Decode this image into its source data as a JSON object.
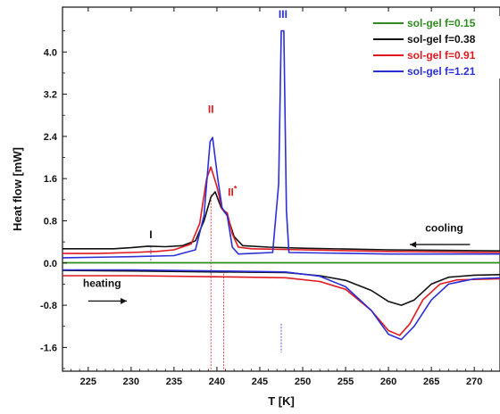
{
  "chart_data": {
    "type": "line",
    "title": "",
    "xlabel": "T [K]",
    "ylabel": "Heat flow [mW]",
    "xlim": [
      222,
      273
    ],
    "ylim": [
      -2.05,
      4.85
    ],
    "xticks": [
      225,
      230,
      235,
      240,
      245,
      250,
      255,
      260,
      265,
      270
    ],
    "yticks": [
      -1.6,
      -0.8,
      0.0,
      0.8,
      1.6,
      2.4,
      3.2,
      4.0
    ],
    "legend_position": "top-right",
    "series": [
      {
        "name": "sol-gel f=0.15",
        "color": "#2e8b1e",
        "cooling": [
          [
            222,
            0.005
          ],
          [
            273,
            0.005
          ]
        ],
        "heating": [
          [
            222,
            0.005
          ],
          [
            273,
            0.005
          ]
        ]
      },
      {
        "name": "sol-gel f=0.38",
        "color": "#111111",
        "cooling": [
          [
            222,
            0.27
          ],
          [
            228,
            0.27
          ],
          [
            230,
            0.29
          ],
          [
            232,
            0.32
          ],
          [
            234,
            0.31
          ],
          [
            236,
            0.33
          ],
          [
            237.5,
            0.42
          ],
          [
            238.5,
            0.8
          ],
          [
            239.3,
            1.25
          ],
          [
            239.8,
            1.35
          ],
          [
            240.5,
            1.05
          ],
          [
            241.2,
            0.9
          ],
          [
            242,
            0.5
          ],
          [
            243,
            0.33
          ],
          [
            246,
            0.3
          ],
          [
            250,
            0.28
          ],
          [
            260,
            0.25
          ],
          [
            273,
            0.23
          ]
        ],
        "heating": [
          [
            222,
            -0.14
          ],
          [
            230,
            -0.15
          ],
          [
            240,
            -0.17
          ],
          [
            248,
            -0.18
          ],
          [
            252,
            -0.24
          ],
          [
            255,
            -0.33
          ],
          [
            258,
            -0.52
          ],
          [
            260,
            -0.73
          ],
          [
            261.5,
            -0.8
          ],
          [
            263,
            -0.7
          ],
          [
            265,
            -0.4
          ],
          [
            267,
            -0.27
          ],
          [
            270,
            -0.23
          ],
          [
            273,
            -0.22
          ]
        ]
      },
      {
        "name": "sol-gel f=0.91",
        "color": "#e0191f",
        "cooling": [
          [
            222,
            0.18
          ],
          [
            226,
            0.18
          ],
          [
            230,
            0.2
          ],
          [
            233,
            0.22
          ],
          [
            235,
            0.25
          ],
          [
            237,
            0.36
          ],
          [
            238,
            0.75
          ],
          [
            238.8,
            1.6
          ],
          [
            239.3,
            1.82
          ],
          [
            240,
            1.45
          ],
          [
            240.6,
            1.02
          ],
          [
            241.2,
            0.95
          ],
          [
            241.8,
            0.55
          ],
          [
            242.5,
            0.3
          ],
          [
            244,
            0.27
          ],
          [
            250,
            0.25
          ],
          [
            260,
            0.22
          ],
          [
            273,
            0.2
          ]
        ],
        "heating": [
          [
            222,
            -0.24
          ],
          [
            230,
            -0.24
          ],
          [
            240,
            -0.26
          ],
          [
            248,
            -0.28
          ],
          [
            252,
            -0.35
          ],
          [
            255,
            -0.5
          ],
          [
            258,
            -0.9
          ],
          [
            260,
            -1.28
          ],
          [
            261.3,
            -1.37
          ],
          [
            262.5,
            -1.15
          ],
          [
            264,
            -0.7
          ],
          [
            266,
            -0.4
          ],
          [
            268,
            -0.32
          ],
          [
            273,
            -0.3
          ]
        ]
      },
      {
        "name": "sol-gel f=1.21",
        "color": "#2a2fd6",
        "cooling": [
          [
            222,
            0.1
          ],
          [
            230,
            0.12
          ],
          [
            235,
            0.14
          ],
          [
            237.5,
            0.25
          ],
          [
            238.5,
            0.9
          ],
          [
            239.2,
            2.3
          ],
          [
            239.5,
            2.38
          ],
          [
            240.1,
            1.6
          ],
          [
            240.6,
            1.05
          ],
          [
            241.2,
            0.9
          ],
          [
            241.8,
            0.3
          ],
          [
            242.5,
            0.17
          ],
          [
            246.5,
            0.2
          ],
          [
            247.2,
            1.5
          ],
          [
            247.5,
            4.4
          ],
          [
            247.8,
            4.4
          ],
          [
            248.1,
            1.0
          ],
          [
            248.4,
            0.2
          ],
          [
            252,
            0.19
          ],
          [
            260,
            0.17
          ],
          [
            273,
            0.17
          ]
        ],
        "heating": [
          [
            222,
            -0.13
          ],
          [
            230,
            -0.13
          ],
          [
            240,
            -0.15
          ],
          [
            248,
            -0.17
          ],
          [
            252,
            -0.25
          ],
          [
            255,
            -0.45
          ],
          [
            258,
            -0.9
          ],
          [
            260,
            -1.35
          ],
          [
            261.5,
            -1.45
          ],
          [
            263,
            -1.2
          ],
          [
            265,
            -0.7
          ],
          [
            267,
            -0.4
          ],
          [
            270,
            -0.3
          ],
          [
            273,
            -0.28
          ]
        ]
      }
    ],
    "annotations": [
      {
        "text": "I",
        "x": 232.3,
        "y": 0.47,
        "color": "#111111"
      },
      {
        "text": "II",
        "x": 239.3,
        "y": 2.85,
        "color": "#e0191f"
      },
      {
        "text": "II*",
        "x": 241.8,
        "y": 1.27,
        "color": "#e0191f"
      },
      {
        "text": "III",
        "x": 247.7,
        "y": 4.65,
        "color": "#2a2fd6"
      },
      {
        "text": "cooling",
        "x": 266.5,
        "y": 0.6,
        "color": "#111111"
      },
      {
        "text": "heating",
        "x": 226.6,
        "y": -0.45,
        "color": "#111111"
      }
    ],
    "arrows": [
      {
        "label": "cooling",
        "direction": "left",
        "x_from": 269.5,
        "x_to": 262.5,
        "y": 0.35
      },
      {
        "label": "heating",
        "direction": "right",
        "x_from": 225,
        "x_to": 229.5,
        "y": -0.72
      }
    ],
    "reference_lines": [
      {
        "x": 232.3,
        "y_from": 0.05,
        "y_to": 0.3,
        "color": "#2a2fd6"
      },
      {
        "x": 239.3,
        "y_from": -0.2,
        "y_to": 1.3,
        "color": "#e0191f"
      },
      {
        "x": 239.3,
        "y_from": -0.2,
        "y_to": -2.05,
        "color": "#e0191f"
      },
      {
        "x": 240.8,
        "y_from": -0.2,
        "y_to": -2.05,
        "color": "#e0191f"
      },
      {
        "x": 247.5,
        "y_from": -1.15,
        "y_to": -1.7,
        "color": "#2a2fd6"
      }
    ]
  }
}
